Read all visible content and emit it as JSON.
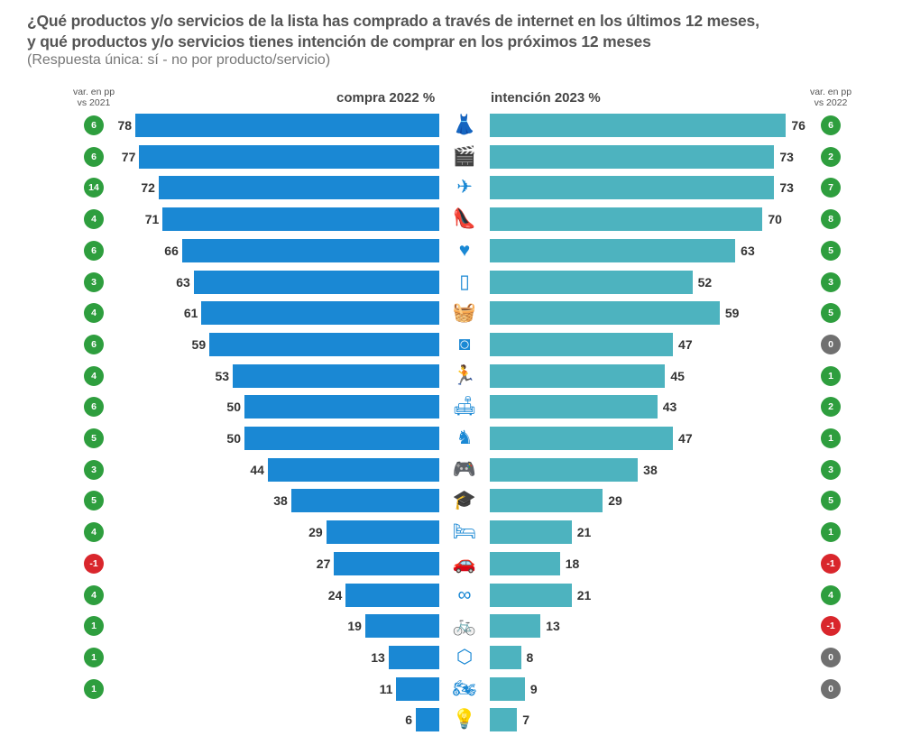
{
  "title_line1": "¿Qué productos y/o servicios de la lista has comprado a través de internet en los últimos 12 meses,",
  "title_line2": "y qué productos y/o servicios tienes intención de comprar en los próximos 12 meses",
  "subtitle": "(Respuesta única: sí - no por producto/servicio)",
  "left_var_header": "var. en pp\nvs 2021",
  "right_var_header": "var. en pp\nvs 2022",
  "colors": {
    "compra": "#1a88d4",
    "intencion": "#4db3bf",
    "positive": "#2e9e3e",
    "negative": "#d9262c",
    "zero": "#707070"
  },
  "chart_data": {
    "type": "bar",
    "orientation": "horizontal-butterfly",
    "categories": [
      "dress-icon",
      "film-clapper-icon",
      "airplane-icon",
      "high-heel-icon",
      "heart-check-icon",
      "smartphone-icon",
      "shopping-basket-icon",
      "washing-machine-icon",
      "running-person-icon",
      "sofa-icon",
      "rocking-horse-icon",
      "gamepad-icon",
      "graduation-cap-icon",
      "bed-icon",
      "car-icon",
      "pacifier-icon",
      "bicycle-icon",
      "box-icon",
      "motorcycle-icon",
      "lightbulb-icon"
    ],
    "series": [
      {
        "name": "compra 2022 %",
        "values": [
          78,
          77,
          72,
          71,
          66,
          63,
          61,
          59,
          53,
          50,
          50,
          44,
          38,
          29,
          27,
          24,
          19,
          13,
          11,
          6
        ]
      },
      {
        "name": "intención 2023 %",
        "values": [
          76,
          73,
          73,
          70,
          63,
          52,
          59,
          47,
          45,
          43,
          47,
          38,
          29,
          21,
          18,
          21,
          13,
          8,
          9,
          7
        ]
      }
    ],
    "var_vs_2021": [
      6,
      6,
      14,
      4,
      6,
      3,
      4,
      6,
      4,
      6,
      5,
      3,
      5,
      4,
      -1,
      4,
      1,
      1,
      1,
      null
    ],
    "var_vs_2022": [
      6,
      2,
      7,
      8,
      5,
      3,
      5,
      0,
      1,
      2,
      1,
      3,
      5,
      1,
      -1,
      4,
      -1,
      0,
      0,
      null
    ],
    "xlim": [
      0,
      80
    ]
  }
}
